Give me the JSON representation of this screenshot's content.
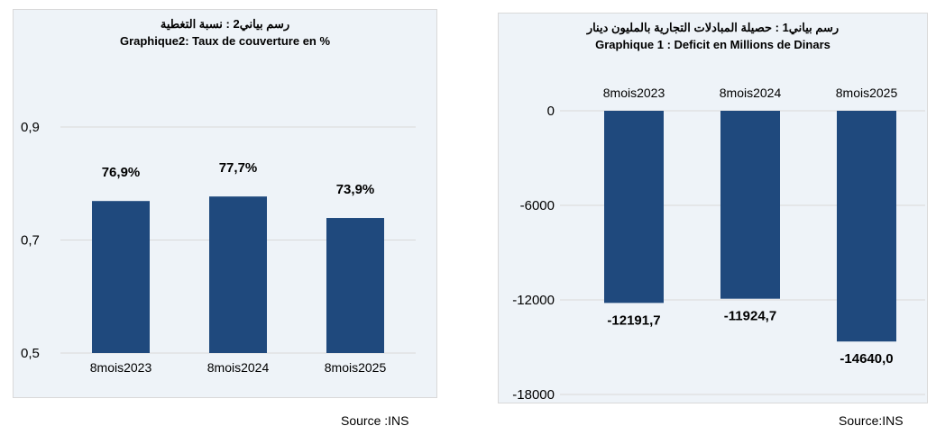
{
  "source_left": "Source :INS",
  "source_right": "Source:INS",
  "colors": {
    "bar": "#1f497d",
    "grid": "#d9d9d9",
    "panel": "#eef3f8"
  },
  "chart_data": [
    {
      "type": "bar",
      "title_ar": "رسم بياني2 : نسبة التغطية",
      "title": "Graphique2: Taux de couverture en %",
      "categories": [
        "8mois2023",
        "8mois2024",
        "8mois2025"
      ],
      "values": [
        0.769,
        0.777,
        0.739
      ],
      "data_labels": [
        "76,9%",
        "77,7%",
        "73,9%"
      ],
      "ylim": [
        0.5,
        0.9
      ],
      "yticks": [
        "0,9",
        "0,7",
        "0,5"
      ],
      "grid": true
    },
    {
      "type": "bar",
      "title_ar": "رسم بياني1 : حصيلة المبادلات التجارية بالمليون دينار",
      "title": "Graphique 1 : Deficit en Millions de Dinars",
      "categories": [
        "8mois2023",
        "8mois2024",
        "8mois2025"
      ],
      "values": [
        -12191.7,
        -11924.7,
        -14640.0
      ],
      "data_labels": [
        "-12191,7",
        "-11924,7",
        "-14640,0"
      ],
      "ylim": [
        -18000,
        0
      ],
      "yticks": [
        "0",
        "-6000",
        "-12000",
        "-18000"
      ],
      "grid": true
    }
  ]
}
